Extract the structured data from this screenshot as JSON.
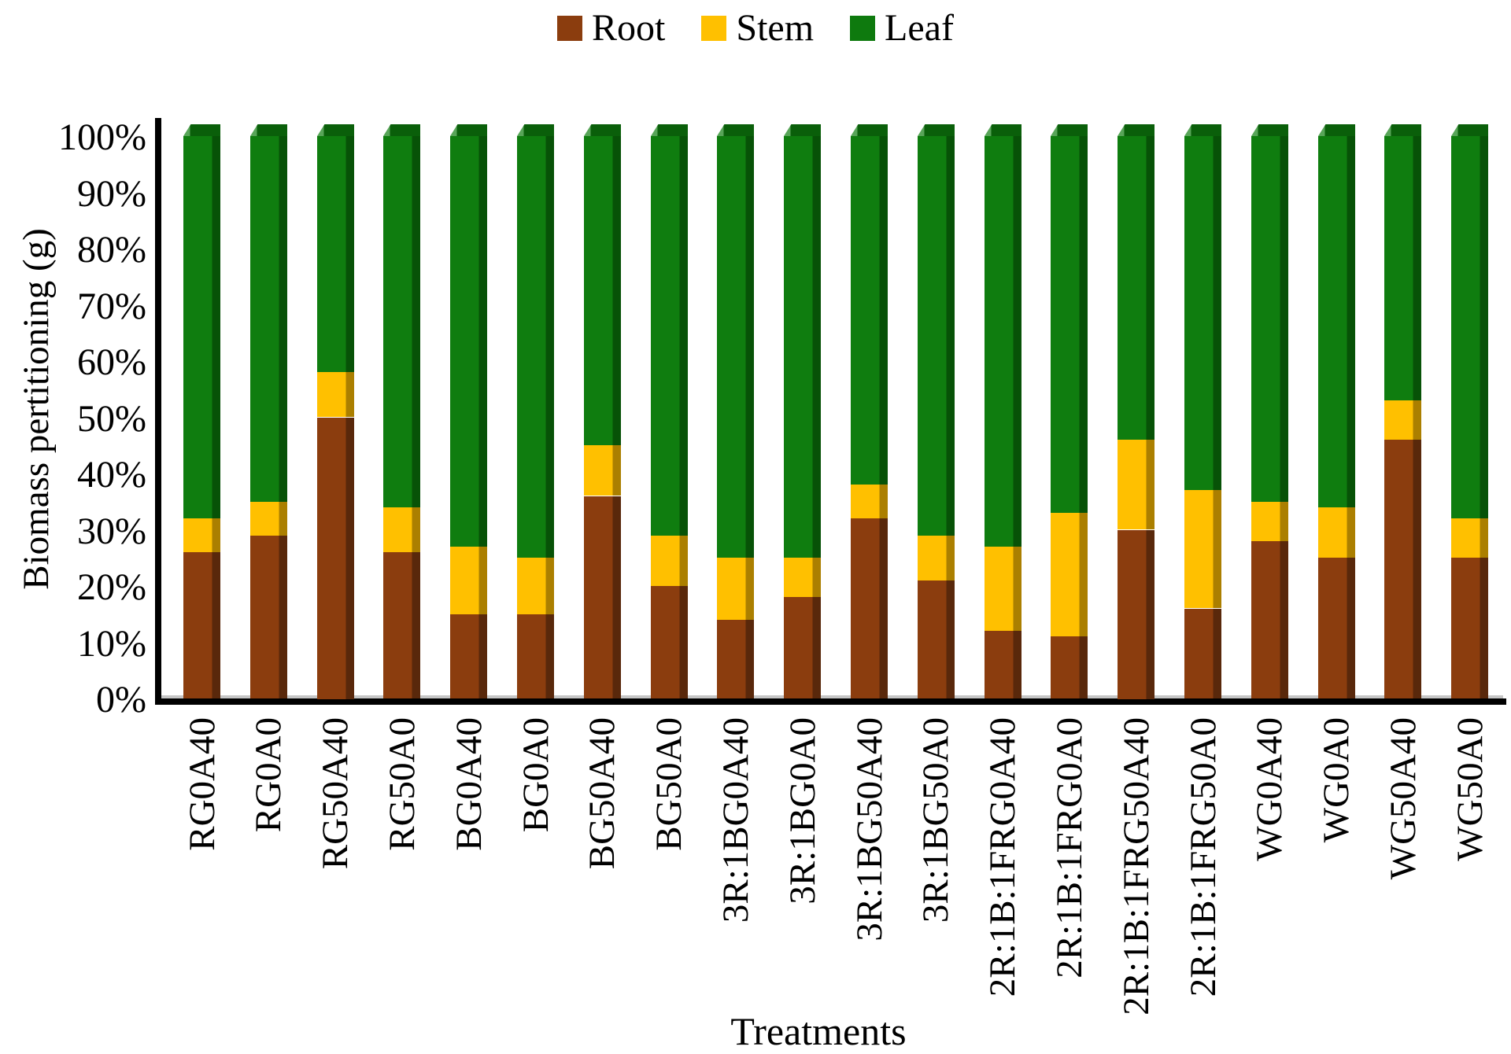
{
  "legend": {
    "position": "top",
    "items": [
      {
        "label": "Root",
        "color": "#8B3D0E"
      },
      {
        "label": "Stem",
        "color": "#FFC000"
      },
      {
        "label": "Leaf",
        "color": "#0E7A0E"
      }
    ]
  },
  "axes": {
    "y_title": "Biomass pertitioning (g)",
    "x_title": "Treatments",
    "y_tick_labels": [
      "0%",
      "10%",
      "20%",
      "30%",
      "40%",
      "50%",
      "60%",
      "70%",
      "80%",
      "90%",
      "100%"
    ]
  },
  "chart_data": {
    "type": "bar",
    "stacked": true,
    "units": "percent",
    "title": "",
    "xlabel": "Treatments",
    "ylabel": "Biomass pertitioning (g)",
    "ylim": [
      0,
      100
    ],
    "grid": false,
    "legend_position": "top",
    "categories": [
      "RG0A40",
      "RG0A0",
      "RG50A40",
      "RG50A0",
      "BG0A40",
      "BG0A0",
      "BG50A40",
      "BG50A0",
      "3R:1BG0A40",
      "3R:1BG0A0",
      "3R:1BG50A40",
      "3R:1BG50A0",
      "2R:1B:1FRG0A40",
      "2R:1B:1FRG0A0",
      "2R:1B:1FRG50A40",
      "2R:1B:1FRG50A0",
      "WG0A40",
      "WG0A0",
      "WG50A40",
      "WG50A0"
    ],
    "series": [
      {
        "name": "Root",
        "color": "#8B3D0E",
        "edge_color": "#59280B",
        "values": [
          26,
          29,
          50,
          26,
          15,
          15,
          36,
          20,
          14,
          18,
          32,
          21,
          12,
          11,
          30,
          16,
          28,
          25,
          46,
          25
        ]
      },
      {
        "name": "Stem",
        "color": "#FFC000",
        "edge_color": "#AB7F00",
        "values": [
          6,
          6,
          8,
          8,
          12,
          10,
          9,
          9,
          11,
          7,
          6,
          8,
          15,
          22,
          16,
          21,
          7,
          9,
          7,
          7
        ]
      },
      {
        "name": "Leaf",
        "color": "#0F7D0F",
        "edge_color": "#075207",
        "values": [
          68,
          65,
          42,
          66,
          73,
          75,
          55,
          71,
          75,
          75,
          62,
          71,
          73,
          67,
          54,
          63,
          65,
          66,
          47,
          68
        ]
      }
    ],
    "cap_colors": {
      "light": "#58A558",
      "dark": "#0A5F0A"
    }
  }
}
